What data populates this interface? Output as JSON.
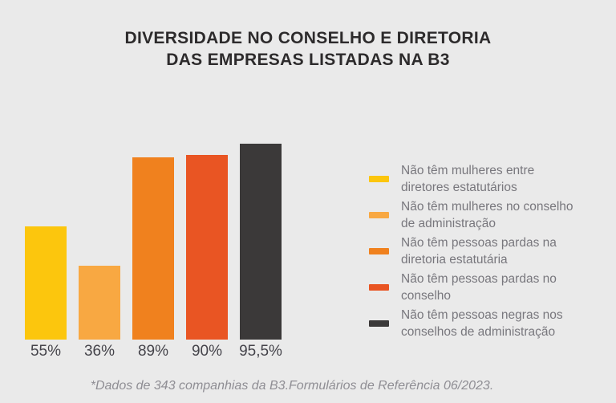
{
  "background_color": "#EAEAEA",
  "title": {
    "line1": "DIVERSIDADE NO CONSELHO E DIRETORIA",
    "line2": "DAS EMPRESAS LISTADAS NA B3"
  },
  "footnote": "*Dados de 343 companhias da B3.Formulários de Referência 06/2023.",
  "chart_data": {
    "type": "bar",
    "title": "Diversidade no conselho e diretoria das empresas listadas na B3",
    "xlabel": "",
    "ylabel": "",
    "unit": "%",
    "ylim": [
      0,
      100
    ],
    "grid": false,
    "axes_shown": false,
    "legend_position": "right",
    "categories": [
      "Não têm mulheres entre diretores estatutários",
      "Não têm mulheres no conselho de administração",
      "Não têm pessoas pardas na diretoria estatutária",
      "Não têm pessoas pardas no conselho",
      "Não têm pessoas negras nos conselhos de administração"
    ],
    "values": [
      55,
      36,
      89,
      90,
      95.5
    ],
    "value_labels": [
      "55%",
      "36%",
      "89%",
      "90%",
      "95,5%"
    ],
    "colors": [
      "#FCC60D",
      "#F8A842",
      "#F0811E",
      "#E95523",
      "#3B3939"
    ],
    "legend_labels_display": [
      "Não têm mulheres entre\ndiretores estatutários",
      "Não têm mulheres no conselho\nde administração",
      "Não têm pessoas pardas na\ndiretoria estatutária",
      "Não têm pessoas pardas no\nconselho",
      "Não têm pessoas negras nos\nconselhos de administração"
    ]
  }
}
